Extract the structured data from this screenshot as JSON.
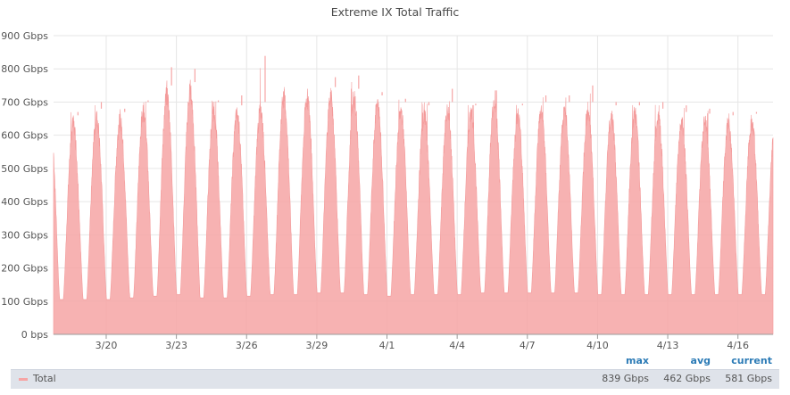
{
  "chart_data": {
    "type": "area",
    "title": "Extreme IX Total Traffic",
    "xlabel": "",
    "ylabel": "",
    "y_unit": "Gbps",
    "ylim": [
      0,
      900
    ],
    "y_ticks": [
      {
        "value": 0,
        "label": "0 bps"
      },
      {
        "value": 100,
        "label": "100 Gbps"
      },
      {
        "value": 200,
        "label": "200 Gbps"
      },
      {
        "value": 300,
        "label": "300 Gbps"
      },
      {
        "value": 400,
        "label": "400 Gbps"
      },
      {
        "value": 500,
        "label": "500 Gbps"
      },
      {
        "value": 600,
        "label": "600 Gbps"
      },
      {
        "value": 700,
        "label": "700 Gbps"
      },
      {
        "value": 800,
        "label": "800 Gbps"
      },
      {
        "value": 900,
        "label": "900 Gbps"
      }
    ],
    "x_range": [
      "2025-03-17T18:00",
      "2025-04-17T12:00"
    ],
    "x_ticks": [
      {
        "date": "2025-03-20",
        "label": "3/20"
      },
      {
        "date": "2025-03-23",
        "label": "3/23"
      },
      {
        "date": "2025-03-26",
        "label": "3/26"
      },
      {
        "date": "2025-03-29",
        "label": "3/29"
      },
      {
        "date": "2025-04-01",
        "label": "4/1"
      },
      {
        "date": "2025-04-04",
        "label": "4/4"
      },
      {
        "date": "2025-04-07",
        "label": "4/7"
      },
      {
        "date": "2025-04-10",
        "label": "4/10"
      },
      {
        "date": "2025-04-13",
        "label": "4/13"
      },
      {
        "date": "2025-04-16",
        "label": "4/16"
      }
    ],
    "grid": true,
    "series": [
      {
        "name": "Total",
        "color": "#f6a5a5",
        "daily": [
          {
            "date": "2025-03-17",
            "min": 100,
            "peak": 700,
            "spike": 700
          },
          {
            "date": "2025-03-18",
            "min": 105,
            "peak": 660,
            "spike": 670
          },
          {
            "date": "2025-03-19",
            "min": 105,
            "peak": 680,
            "spike": 700
          },
          {
            "date": "2025-03-20",
            "min": 105,
            "peak": 670,
            "spike": 680
          },
          {
            "date": "2025-03-21",
            "min": 110,
            "peak": 700,
            "spike": 705
          },
          {
            "date": "2025-03-22",
            "min": 115,
            "peak": 750,
            "spike": 805
          },
          {
            "date": "2025-03-23",
            "min": 120,
            "peak": 760,
            "spike": 800
          },
          {
            "date": "2025-03-24",
            "min": 110,
            "peak": 700,
            "spike": 705
          },
          {
            "date": "2025-03-25",
            "min": 110,
            "peak": 690,
            "spike": 720
          },
          {
            "date": "2025-03-26",
            "min": 115,
            "peak": 700,
            "spike": 839
          },
          {
            "date": "2025-03-27",
            "min": 120,
            "peak": 745,
            "spike": 745
          },
          {
            "date": "2025-03-28",
            "min": 120,
            "peak": 740,
            "spike": 740
          },
          {
            "date": "2025-03-29",
            "min": 125,
            "peak": 745,
            "spike": 775
          },
          {
            "date": "2025-03-30",
            "min": 125,
            "peak": 740,
            "spike": 780
          },
          {
            "date": "2025-03-31",
            "min": 120,
            "peak": 720,
            "spike": 730
          },
          {
            "date": "2025-04-01",
            "min": 115,
            "peak": 700,
            "spike": 710
          },
          {
            "date": "2025-04-02",
            "min": 120,
            "peak": 690,
            "spike": 700
          },
          {
            "date": "2025-04-03",
            "min": 120,
            "peak": 700,
            "spike": 740
          },
          {
            "date": "2025-04-04",
            "min": 120,
            "peak": 690,
            "spike": 695
          },
          {
            "date": "2025-04-05",
            "min": 125,
            "peak": 735,
            "spike": 735
          },
          {
            "date": "2025-04-06",
            "min": 125,
            "peak": 690,
            "spike": 695
          },
          {
            "date": "2025-04-07",
            "min": 125,
            "peak": 700,
            "spike": 720
          },
          {
            "date": "2025-04-08",
            "min": 125,
            "peak": 700,
            "spike": 720
          },
          {
            "date": "2025-04-09",
            "min": 125,
            "peak": 700,
            "spike": 750
          },
          {
            "date": "2025-04-10",
            "min": 120,
            "peak": 690,
            "spike": 700
          },
          {
            "date": "2025-04-11",
            "min": 120,
            "peak": 690,
            "spike": 700
          },
          {
            "date": "2025-04-12",
            "min": 120,
            "peak": 680,
            "spike": 700
          },
          {
            "date": "2025-04-13",
            "min": 120,
            "peak": 670,
            "spike": 690
          },
          {
            "date": "2025-04-14",
            "min": 120,
            "peak": 665,
            "spike": 680
          },
          {
            "date": "2025-04-15",
            "min": 120,
            "peak": 660,
            "spike": 670
          },
          {
            "date": "2025-04-16",
            "min": 120,
            "peak": 665,
            "spike": 670
          },
          {
            "date": "2025-04-17",
            "min": 120,
            "peak": 660,
            "spike": 665
          }
        ]
      }
    ],
    "legend": {
      "placement": "bottom",
      "headers": {
        "max": "max",
        "avg": "avg",
        "current": "current"
      },
      "entries": [
        {
          "name": "Total",
          "max": "839 Gbps",
          "avg": "462 Gbps",
          "current": "581 Gbps"
        }
      ]
    }
  }
}
